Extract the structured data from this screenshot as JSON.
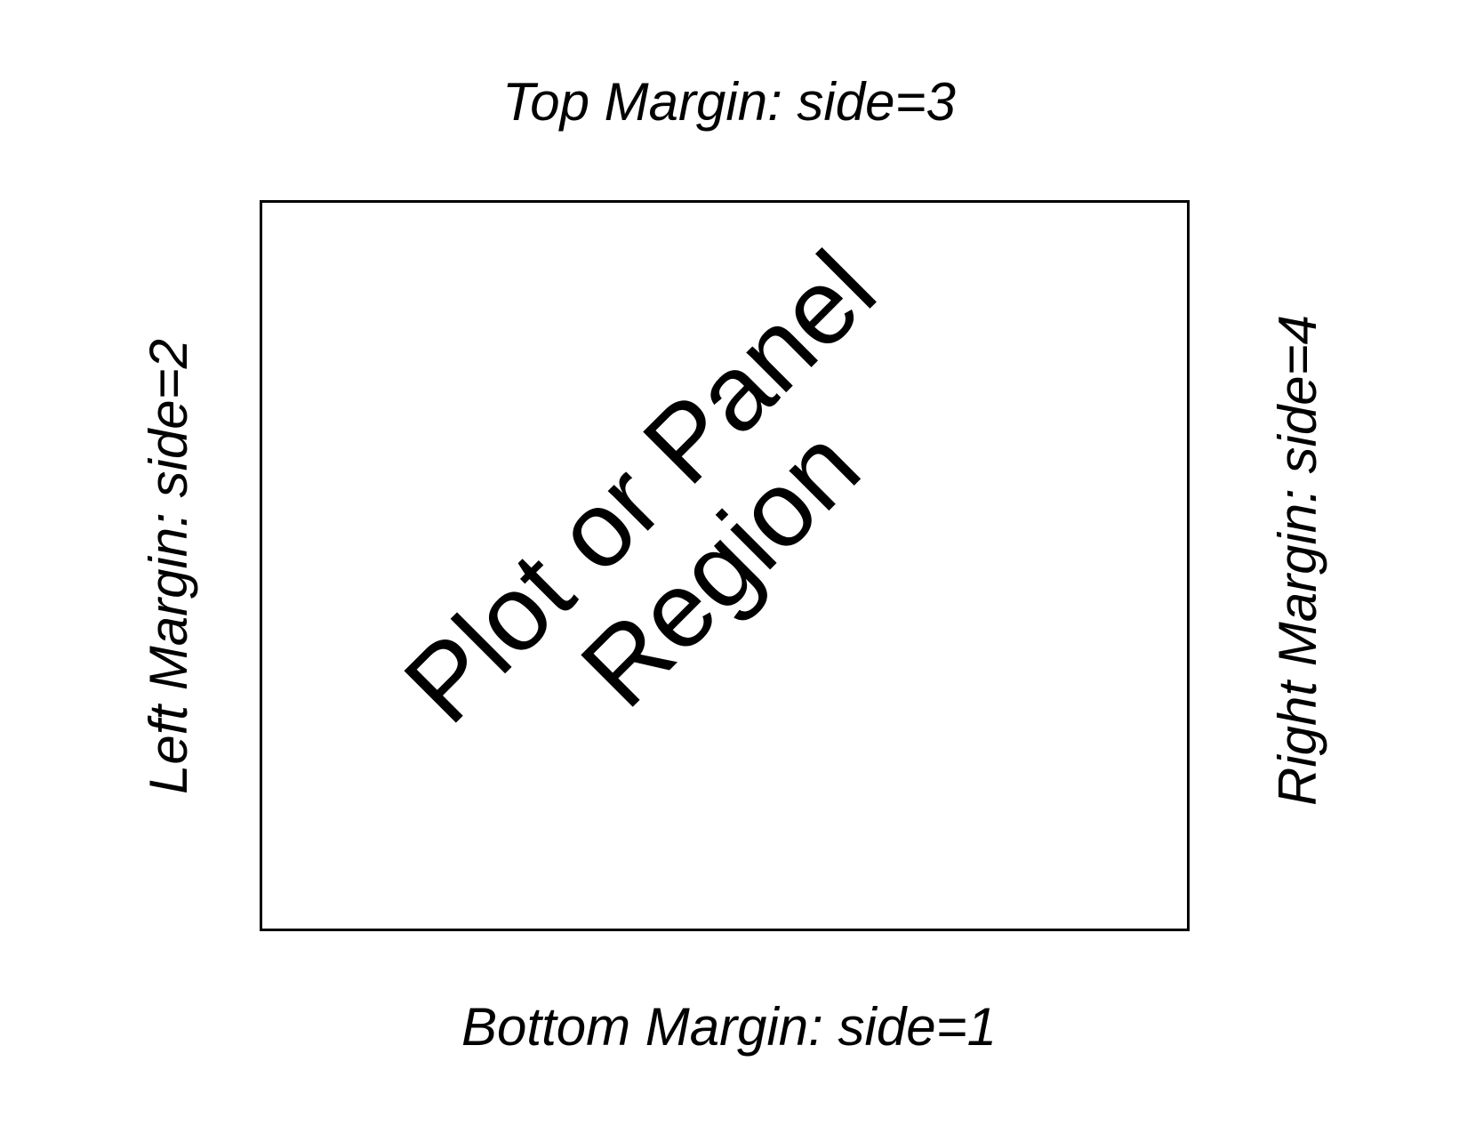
{
  "margins": {
    "top": "Top Margin: side=3",
    "bottom": "Bottom Margin: side=1",
    "left": "Left Margin: side=2",
    "right": "Right Margin: side=4"
  },
  "panel": {
    "line1": "Plot or Panel",
    "line2": "Region"
  }
}
